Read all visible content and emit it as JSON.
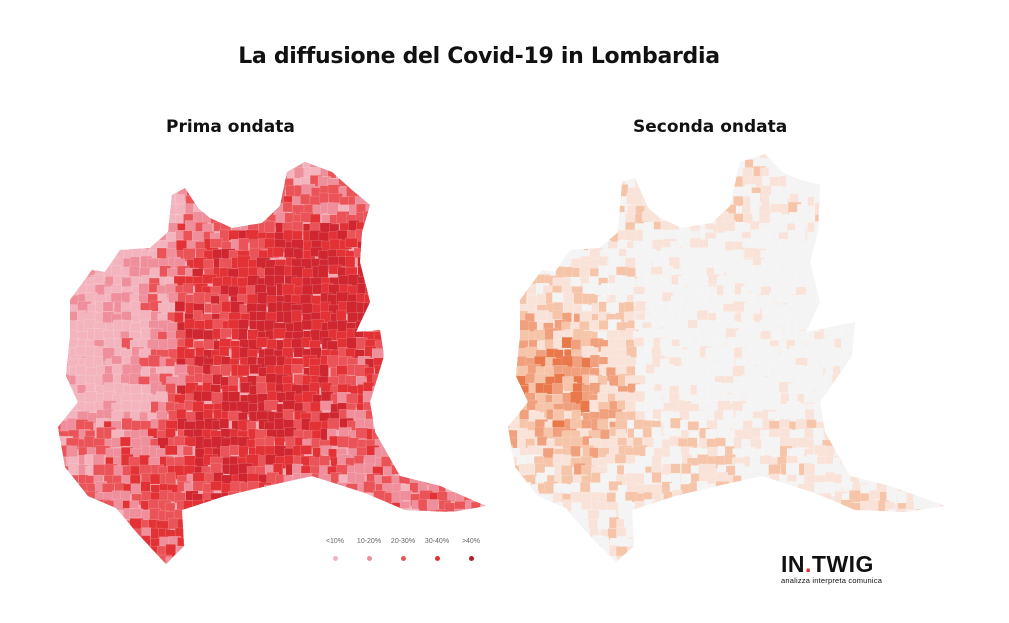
{
  "title": "La diffusione del Covid-19 in Lombardia",
  "maps": [
    {
      "subtitle": "Prima ondata",
      "palette": [
        "#f3b4bd",
        "#ef8f9b",
        "#ea5458",
        "#e33236",
        "#cf2630"
      ],
      "base": "#f1a8b1"
    },
    {
      "subtitle": "Seconda ondata",
      "palette": [
        "#f4f4f4",
        "#f9e2d8",
        "#f6c4a9",
        "#f1a07d",
        "#e9784b"
      ],
      "base": "#f8e8e0"
    }
  ],
  "legend": {
    "items": [
      {
        "label": "<10%",
        "color": "#f3b4bd"
      },
      {
        "label": "10-20%",
        "color": "#ef8f9b"
      },
      {
        "label": "20-30%",
        "color": "#ea5458"
      },
      {
        "label": "30-40%",
        "color": "#e33236"
      },
      {
        "label": ">40%",
        "color": "#b31f2a"
      }
    ]
  },
  "logo": {
    "brand_a": "IN",
    "brand_dot": ".",
    "brand_b": "TWIG",
    "tagline": "analizza interpreta comunica"
  }
}
